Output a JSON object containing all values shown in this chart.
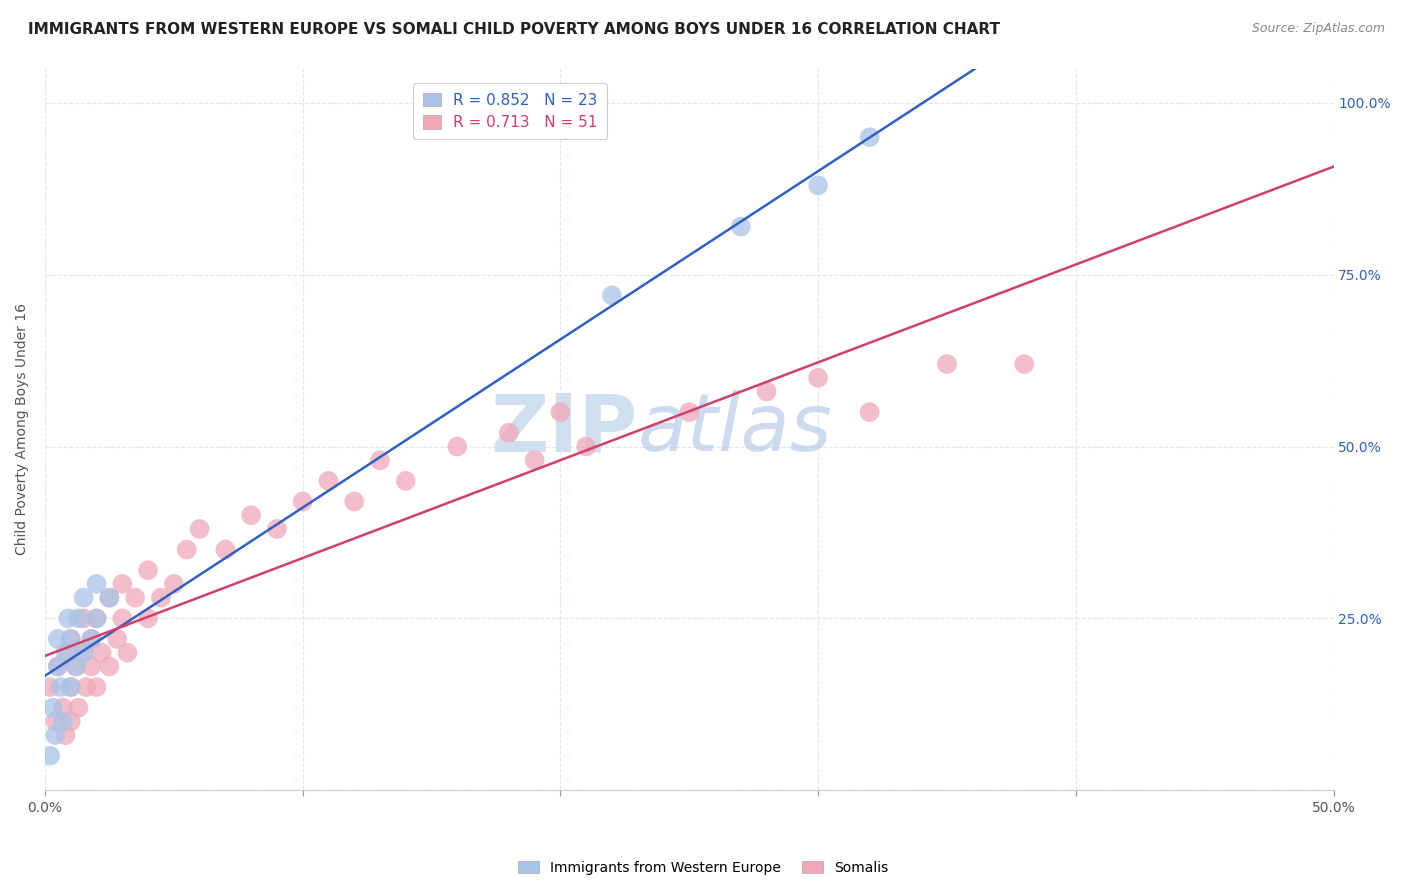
{
  "title": "IMMIGRANTS FROM WESTERN EUROPE VS SOMALI CHILD POVERTY AMONG BOYS UNDER 16 CORRELATION CHART",
  "source": "Source: ZipAtlas.com",
  "ylabel": "Child Poverty Among Boys Under 16",
  "blue_label": "Immigrants from Western Europe",
  "pink_label": "Somalis",
  "blue_R": "0.852",
  "blue_N": "23",
  "pink_R": "0.713",
  "pink_N": "51",
  "blue_color": "#a8c4e8",
  "pink_color": "#f0a8b8",
  "blue_line_color": "#3060c0",
  "pink_line_color": "#d04068",
  "watermark_color": "#d0dff0",
  "blue_scatter_x": [
    0.002,
    0.003,
    0.004,
    0.005,
    0.005,
    0.006,
    0.007,
    0.008,
    0.009,
    0.01,
    0.01,
    0.012,
    0.013,
    0.015,
    0.015,
    0.018,
    0.02,
    0.02,
    0.025,
    0.22,
    0.27,
    0.3,
    0.32
  ],
  "blue_scatter_y": [
    0.05,
    0.12,
    0.08,
    0.18,
    0.22,
    0.15,
    0.1,
    0.2,
    0.25,
    0.15,
    0.22,
    0.18,
    0.25,
    0.2,
    0.28,
    0.22,
    0.25,
    0.3,
    0.28,
    0.72,
    0.82,
    0.88,
    0.95
  ],
  "pink_scatter_x": [
    0.002,
    0.004,
    0.005,
    0.007,
    0.008,
    0.009,
    0.01,
    0.01,
    0.01,
    0.012,
    0.013,
    0.015,
    0.015,
    0.016,
    0.018,
    0.018,
    0.02,
    0.02,
    0.022,
    0.025,
    0.025,
    0.028,
    0.03,
    0.03,
    0.032,
    0.035,
    0.04,
    0.04,
    0.045,
    0.05,
    0.055,
    0.06,
    0.07,
    0.08,
    0.09,
    0.1,
    0.11,
    0.12,
    0.13,
    0.14,
    0.16,
    0.18,
    0.19,
    0.2,
    0.21,
    0.25,
    0.28,
    0.3,
    0.32,
    0.35,
    0.38
  ],
  "pink_scatter_y": [
    0.15,
    0.1,
    0.18,
    0.12,
    0.08,
    0.2,
    0.15,
    0.22,
    0.1,
    0.18,
    0.12,
    0.2,
    0.25,
    0.15,
    0.22,
    0.18,
    0.15,
    0.25,
    0.2,
    0.18,
    0.28,
    0.22,
    0.25,
    0.3,
    0.2,
    0.28,
    0.25,
    0.32,
    0.28,
    0.3,
    0.35,
    0.38,
    0.35,
    0.4,
    0.38,
    0.42,
    0.45,
    0.42,
    0.48,
    0.45,
    0.5,
    0.52,
    0.48,
    0.55,
    0.5,
    0.55,
    0.58,
    0.6,
    0.55,
    0.62,
    0.62
  ],
  "xlim": [
    0.0,
    0.5
  ],
  "ylim": [
    0.0,
    1.05
  ],
  "xticks": [
    0.0,
    0.1,
    0.2,
    0.3,
    0.4,
    0.5
  ],
  "yticks": [
    0.0,
    0.25,
    0.5,
    0.75,
    1.0
  ],
  "right_ytick_labels": [
    "",
    "25.0%",
    "50.0%",
    "75.0%",
    "100.0%"
  ],
  "xtick_labels": [
    "0.0%",
    "",
    "",
    "",
    "",
    "50.0%"
  ],
  "background_color": "#ffffff",
  "grid_color": "#d8e8f4",
  "title_fontsize": 11,
  "legend_fontsize": 11
}
